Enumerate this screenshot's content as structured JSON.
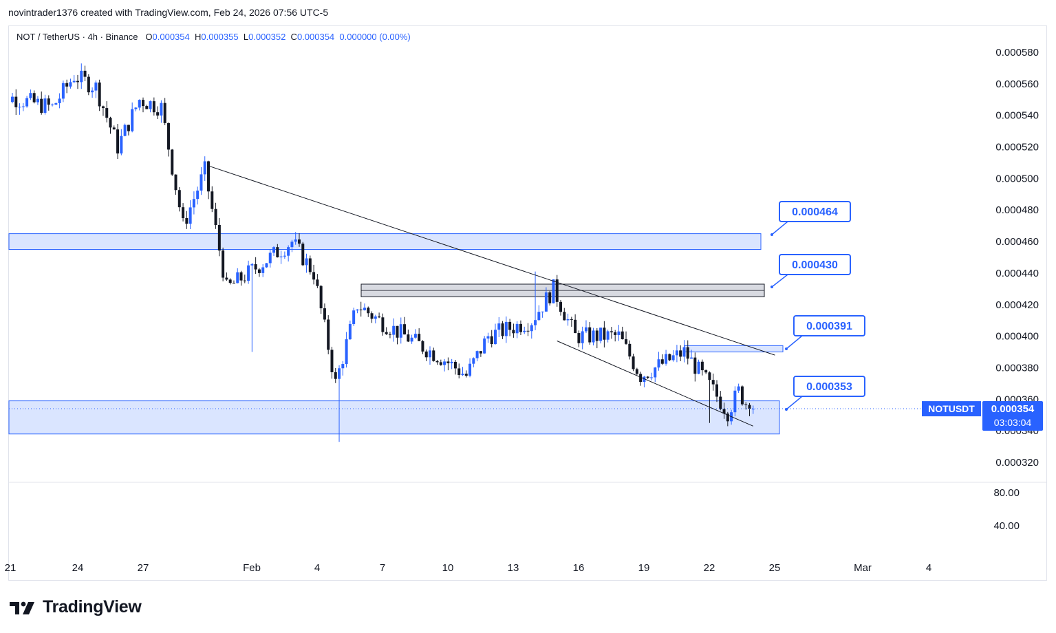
{
  "header": {
    "attribution": "novintrader1376 created with TradingView.com, Feb 24, 2026 07:56 UTC-5"
  },
  "legend": {
    "symbol": "NOT / TetherUS · 4h · Binance",
    "o_label": "O",
    "o_value": "0.000354",
    "h_label": "H",
    "h_value": "0.000355",
    "l_label": "L",
    "l_value": "0.000352",
    "c_label": "C",
    "c_value": "0.000354",
    "change": "0.000000 (0.00%)"
  },
  "price_axis": {
    "ticks": [
      "0.000580",
      "0.000560",
      "0.000540",
      "0.000520",
      "0.000500",
      "0.000480",
      "0.000460",
      "0.000440",
      "0.000420",
      "0.000400",
      "0.000380",
      "0.000360",
      "0.000340",
      "0.000320"
    ],
    "current_symbol": "NOTUSDT",
    "current_price": "0.000354",
    "countdown": "03:03:04"
  },
  "indicator_axis": {
    "ticks": [
      "80.00",
      "40.00"
    ]
  },
  "time_axis": {
    "ticks": [
      "21",
      "24",
      "27",
      "Feb",
      "4",
      "7",
      "10",
      "13",
      "16",
      "19",
      "22",
      "25",
      "Mar",
      "4"
    ]
  },
  "annotations": [
    {
      "label": "0.000464"
    },
    {
      "label": "0.000430"
    },
    {
      "label": "0.000391"
    },
    {
      "label": "0.000353"
    }
  ],
  "colors": {
    "up": "#2962ff",
    "down": "#131722",
    "zone_fill": "#d4e0ff",
    "zone_border": "#2962ff",
    "gray_zone": "#d1d4dc",
    "accent": "#2962ff"
  },
  "chart_data": {
    "type": "candlestick",
    "interval": "4h",
    "ylim": [
      0.00031,
      0.000585
    ],
    "x_range_days": [
      "2026-01-20",
      "2026-03-05"
    ],
    "zones": [
      {
        "label": "0.000464",
        "from": 0.000455,
        "to": 0.000465,
        "color": "blue"
      },
      {
        "label": "0.000430",
        "from": 0.000425,
        "to": 0.000433,
        "color": "gray"
      },
      {
        "label": "0.000391",
        "from": 0.00039,
        "to": 0.000394,
        "color": "blue"
      },
      {
        "label": "0.000353",
        "from": 0.000338,
        "to": 0.000359,
        "color": "blue"
      }
    ],
    "trendlines": [
      {
        "from": [
          "2026-01-30",
          0.000508
        ],
        "to": [
          "2026-02-25",
          0.000388
        ]
      },
      {
        "from": [
          "2026-02-15",
          0.000397
        ],
        "to": [
          "2026-02-24",
          0.000343
        ]
      }
    ],
    "anchors": [
      {
        "date": "2026-01-20",
        "price": 0.000555
      },
      {
        "date": "2026-01-23",
        "price": 0.000545
      },
      {
        "date": "2026-01-24",
        "price": 0.000565
      },
      {
        "date": "2026-01-25",
        "price": 0.000558
      },
      {
        "date": "2026-01-26",
        "price": 0.00052
      },
      {
        "date": "2026-01-27",
        "price": 0.00055
      },
      {
        "date": "2026-01-28",
        "price": 0.000545
      },
      {
        "date": "2026-01-29",
        "price": 0.00047
      },
      {
        "date": "2026-01-30",
        "price": 0.000505
      },
      {
        "date": "2026-01-31",
        "price": 0.00043
      },
      {
        "date": "2026-02-03",
        "price": 0.00046
      },
      {
        "date": "2026-02-04",
        "price": 0.00044
      },
      {
        "date": "2026-02-05",
        "price": 0.00037
      },
      {
        "date": "2026-02-06",
        "price": 0.00042
      },
      {
        "date": "2026-02-07",
        "price": 0.00041
      },
      {
        "date": "2026-02-10",
        "price": 0.000385
      },
      {
        "date": "2026-02-11",
        "price": 0.000375
      },
      {
        "date": "2026-02-12",
        "price": 0.0004
      },
      {
        "date": "2026-02-14",
        "price": 0.00041
      },
      {
        "date": "2026-02-15",
        "price": 0.00043
      },
      {
        "date": "2026-02-16",
        "price": 0.0004
      },
      {
        "date": "2026-02-18",
        "price": 0.0004
      },
      {
        "date": "2026-02-19",
        "price": 0.000375
      },
      {
        "date": "2026-02-21",
        "price": 0.00039
      },
      {
        "date": "2026-02-22",
        "price": 0.000372
      },
      {
        "date": "2026-02-23",
        "price": 0.000352
      },
      {
        "date": "2026-02-23T12",
        "price": 0.000365
      },
      {
        "date": "2026-02-24",
        "price": 0.000354
      }
    ],
    "notable_wicks": [
      {
        "date": "2026-02-01",
        "low": 0.00039
      },
      {
        "date": "2026-02-05",
        "low": 0.000333
      },
      {
        "date": "2026-02-14",
        "high": 0.000441
      },
      {
        "date": "2026-02-22",
        "low": 0.000345
      }
    ],
    "indicator_ylim": [
      0,
      100
    ]
  },
  "footer": {
    "brand": "TradingView"
  }
}
